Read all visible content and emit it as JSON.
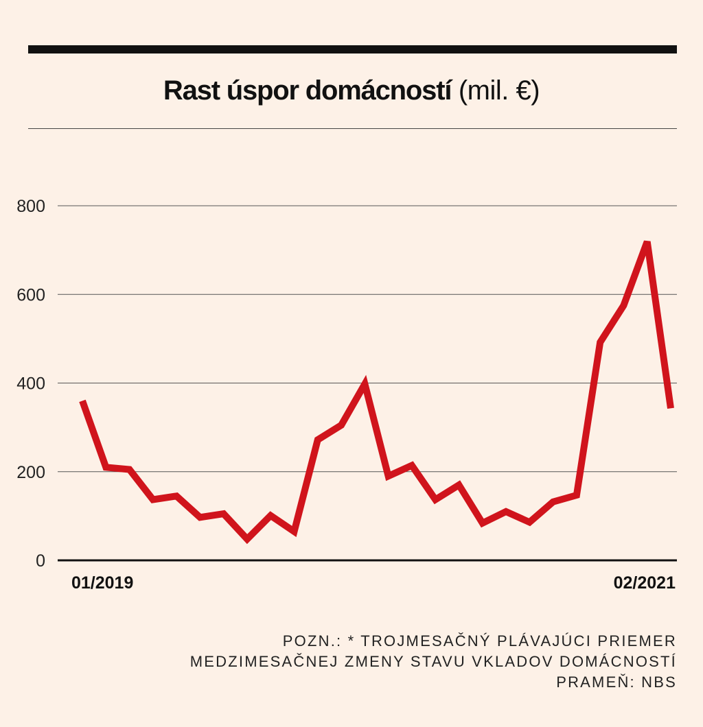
{
  "chart_data": {
    "type": "line",
    "title": "Rast úspor domácností",
    "title_unit": "(mil. €)",
    "xlabel": "",
    "ylabel": "",
    "ylim": [
      0,
      800
    ],
    "yticks": [
      0,
      200,
      400,
      600,
      800
    ],
    "x_tick_labels": [
      "01/2019",
      "02/2021"
    ],
    "grid": true,
    "line_color": "#d0141c",
    "series": [
      {
        "values": [
          360,
          210,
          205,
          137,
          145,
          97,
          105,
          48,
          101,
          65,
          272,
          305,
          398,
          190,
          214,
          137,
          170,
          84,
          110,
          86,
          132,
          147,
          492,
          575,
          719,
          343
        ]
      }
    ]
  },
  "notes": [
    "POZN.: * TROJMESAČNÝ PLÁVAJÚCI PRIEMER",
    "MEDZIMESAČNEJ ZMENY STAVU VKLADOV DOMÁCNOSTÍ",
    "PRAMEŇ: NBS"
  ]
}
